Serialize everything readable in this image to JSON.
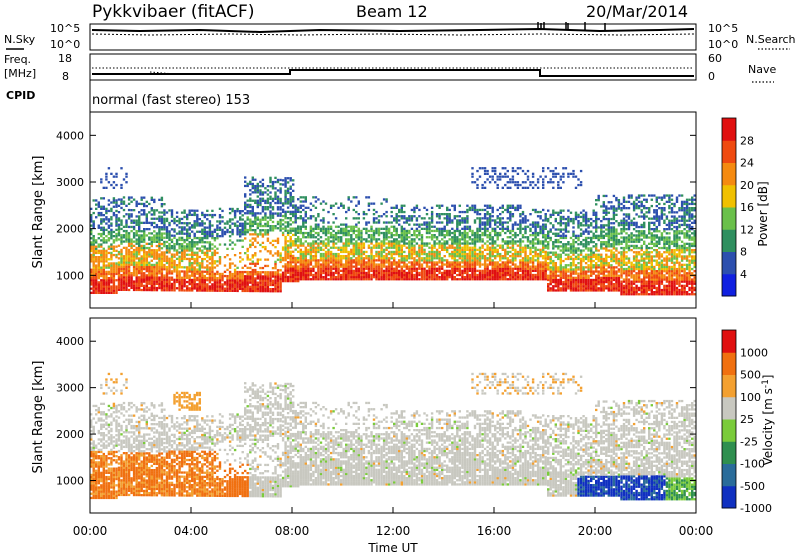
{
  "header": {
    "station": "Pykkvibaer (fitACF)",
    "beam": "Beam 12",
    "date": "20/Mar/2014"
  },
  "top_panels": {
    "nsky": {
      "label": "N.Sky",
      "ticks": [
        "10^5",
        "10^0"
      ]
    },
    "nsearch": {
      "label": "N.Search",
      "ticks": [
        "10^5",
        "10^0"
      ]
    },
    "freq": {
      "label_line1": "Freq.",
      "label_line2": "[MHz]",
      "ticks": [
        "18",
        "8"
      ]
    },
    "nave": {
      "label": "Nave",
      "ticks": [
        "60",
        "0"
      ]
    },
    "cpid": {
      "label": "CPID",
      "text": "normal (fast stereo) 153"
    }
  },
  "chart_data": [
    {
      "type": "heatmap",
      "name": "power-panel",
      "ylabel": "Slant Range [km]",
      "yticks": [
        "1000",
        "2000",
        "3000",
        "4000"
      ],
      "ylim": [
        300,
        4500
      ],
      "colorbar": {
        "label": "Power [dB]",
        "ticks": [
          "4",
          "8",
          "12",
          "16",
          "20",
          "24",
          "28"
        ],
        "colors": [
          "#1020e0",
          "#2c4fae",
          "#2f8f5f",
          "#6ac04a",
          "#f0c000",
          "#f58a10",
          "#ef4a10",
          "#e01010"
        ]
      }
    },
    {
      "type": "heatmap",
      "name": "velocity-panel",
      "ylabel": "Slant Range [km]",
      "yticks": [
        "1000",
        "2000",
        "3000",
        "4000"
      ],
      "ylim": [
        300,
        4500
      ],
      "colorbar": {
        "label": "Velocity [m s",
        "label_sup": "-1",
        "label_close": "]",
        "ticks": [
          "1000",
          "500",
          "100",
          "25",
          "-25",
          "-100",
          "-500",
          "-1000"
        ],
        "colors": [
          "#1030c0",
          "#2a6c9a",
          "#2f8f4f",
          "#7acb3a",
          "#c8c8c0",
          "#f3a030",
          "#f07010",
          "#e01010"
        ]
      }
    }
  ],
  "xaxis": {
    "ticks": [
      "00:00",
      "04:00",
      "08:00",
      "12:00",
      "16:00",
      "20:00",
      "00:00"
    ],
    "label": "Time UT"
  }
}
